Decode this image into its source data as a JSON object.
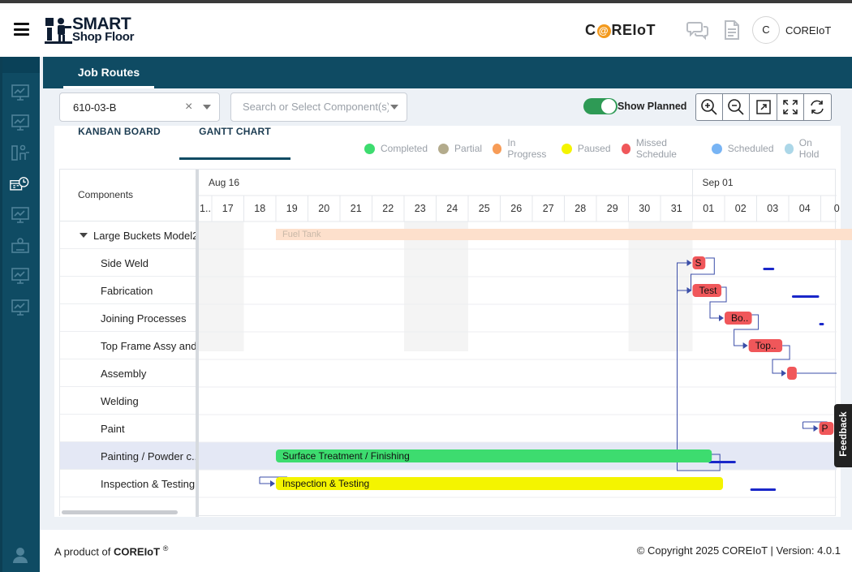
{
  "header": {
    "logo_line1": "SMART",
    "logo_line2": "Shop Floor",
    "brand_pre": "C",
    "brand_at": "@",
    "brand_post": "REIoT",
    "user_initial": "C",
    "user_name": "COREIoT"
  },
  "tabs": {
    "job_routes": "Job Routes"
  },
  "toolbar": {
    "job_value": "610-03-B",
    "clear_glyph": "×",
    "component_placeholder": "Search or Select Component(s)",
    "show_planned_label": "Show Planned",
    "show_planned_on": true
  },
  "view_tabs": {
    "kanban": "KANBAN BOARD",
    "gantt": "GANTT CHART",
    "active": "gantt"
  },
  "legend": [
    {
      "label": "Completed",
      "color": "#3ddc6f"
    },
    {
      "label": "Partial",
      "color": "#b3ab8c"
    },
    {
      "label": "In Progress",
      "color": "#f79c57"
    },
    {
      "label": "Paused",
      "color": "#f4f400"
    },
    {
      "label": "Missed Schedule",
      "color": "#f0575a"
    },
    {
      "label": "Scheduled",
      "color": "#78b4f4"
    },
    {
      "label": "On Hold",
      "color": "#acd7e8"
    }
  ],
  "grid": {
    "components_header": "Components",
    "months": [
      {
        "label": "Aug 16",
        "start_index": 0
      },
      {
        "label": "Sep 01",
        "start_index": 16
      }
    ],
    "days": [
      "1..",
      "17",
      "18",
      "19",
      "20",
      "21",
      "22",
      "23",
      "24",
      "25",
      "26",
      "27",
      "28",
      "29",
      "30",
      "31",
      "01",
      "02",
      "03",
      "04",
      "0"
    ],
    "weekend_day_indexes": [
      0,
      1,
      7,
      8,
      14,
      15
    ],
    "rows": [
      {
        "label": "Large Buckets Model2",
        "group": true
      },
      {
        "label": "Side Weld"
      },
      {
        "label": "Fabrication"
      },
      {
        "label": "Joining Processes"
      },
      {
        "label": "Top Frame Assy and"
      },
      {
        "label": "Assembly"
      },
      {
        "label": " Welding"
      },
      {
        "label": "Paint"
      },
      {
        "label": "Painting / Powder c..",
        "selected": true
      },
      {
        "label": "Inspection & Testing"
      }
    ],
    "tasks": [
      {
        "row": 0,
        "name": "Fuel Tank",
        "label": "Fuel Tank",
        "status": "summary",
        "start": 3.0,
        "end": 21.0
      },
      {
        "row": 1,
        "name": "Side Weld",
        "label": "S",
        "status": "Missed Schedule",
        "start": 16.0,
        "end": 16.4
      },
      {
        "row": 2,
        "name": "Fabrication",
        "label": "Test",
        "status": "Missed Schedule",
        "start": 16.0,
        "end": 16.9
      },
      {
        "row": 3,
        "name": "Joining Processes",
        "label": "Bo..",
        "status": "Missed Schedule",
        "start": 17.0,
        "end": 17.85
      },
      {
        "row": 4,
        "name": "Top Frame Assy",
        "label": "Top..",
        "status": "Missed Schedule",
        "start": 17.75,
        "end": 18.8
      },
      {
        "row": 5,
        "name": "Assembly",
        "label": "",
        "status": "Missed Schedule",
        "start": 18.95,
        "end": 19.25
      },
      {
        "row": 7,
        "name": "Paint",
        "label": "P",
        "status": "Missed Schedule",
        "start": 19.95,
        "end": 20.4
      },
      {
        "row": 8,
        "name": "Surface Treatment / Finishing",
        "label": "Surface Treatment / Finishing",
        "status": "Completed",
        "start": 3.0,
        "end": 16.6
      },
      {
        "row": 9,
        "name": "Inspection & Testing",
        "label": "Inspection & Testing",
        "status": "Paused",
        "start": 3.0,
        "end": 16.95
      }
    ],
    "planned": [
      {
        "row": 1,
        "start": 18.2,
        "end": 18.55
      },
      {
        "row": 2,
        "start": 19.1,
        "end": 19.95
      },
      {
        "row": 3,
        "start": 19.95,
        "end": 20.1
      },
      {
        "row": 8,
        "start": 16.5,
        "end": 17.35
      },
      {
        "row": 9,
        "start": 17.8,
        "end": 18.6
      }
    ]
  },
  "footer": {
    "product_prefix": "A product of",
    "product_brand": "COREIoT",
    "product_mark": "®",
    "copyright": "© Copyright 2025 COREIoT | Version: 4.0.1"
  },
  "feedback_label": "Feedback"
}
